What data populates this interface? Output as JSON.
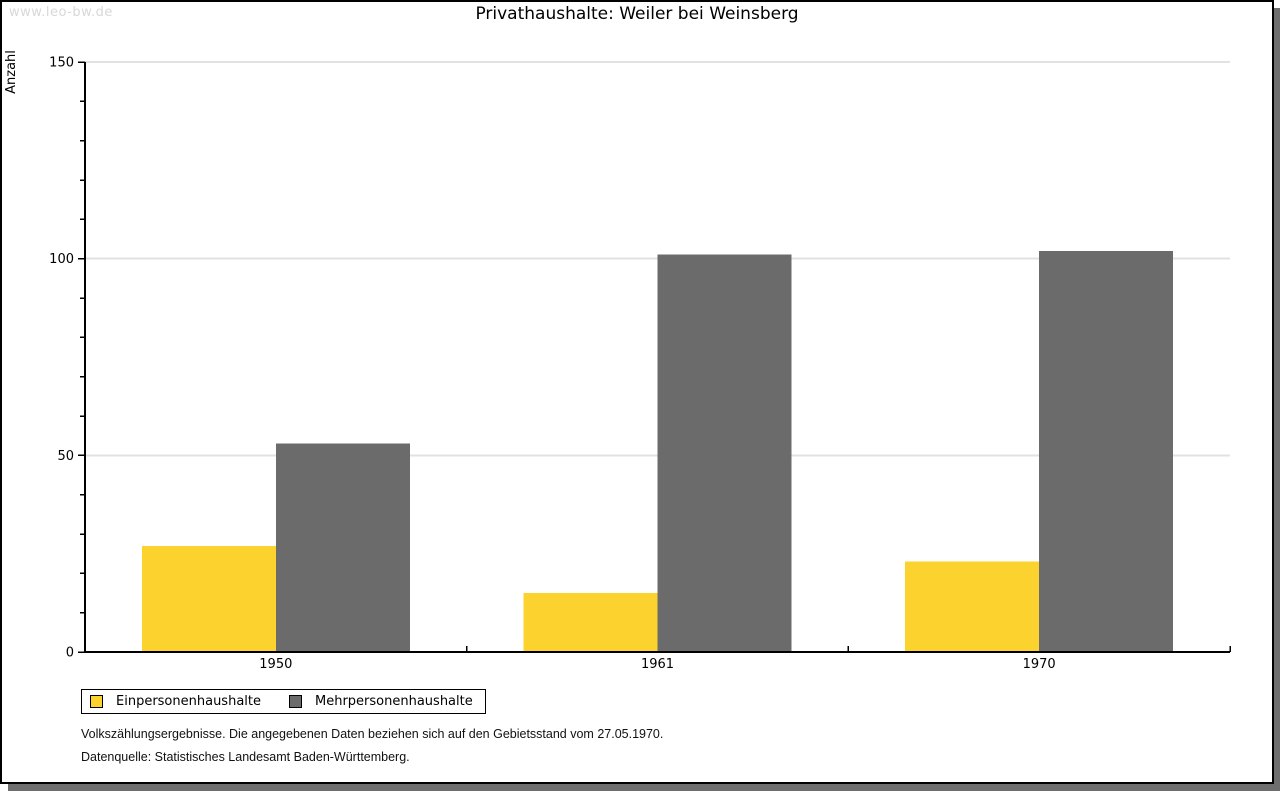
{
  "watermark": "www.leo-bw.de",
  "title": "Privathaushalte: Weiler bei Weinsberg",
  "footer": {
    "line1": "Volkszählungsergebnisse. Die angegebenen Daten beziehen sich auf den Gebietsstand vom 27.05.1970.",
    "line2": "Datenquelle: Statistisches Landesamt Baden-Württemberg."
  },
  "chart_data": {
    "type": "bar",
    "title": "Privathaushalte: Weiler bei Weinsberg",
    "xlabel": "",
    "ylabel": "Anzahl",
    "categories": [
      "1950",
      "1961",
      "1970"
    ],
    "series": [
      {
        "name": "Einpersonenhaushalte",
        "color": "#FCD32E",
        "values": [
          27,
          15,
          23
        ]
      },
      {
        "name": "Mehrpersonenhaushalte",
        "color": "#6B6B6B",
        "values": [
          53,
          101,
          102
        ]
      }
    ],
    "ylim": [
      0,
      150
    ],
    "y_major_step": 50,
    "y_minor_step": 10,
    "grid": "horizontal-major",
    "legend_position": "bottom-left"
  },
  "colors": {
    "grid": "#E2E2E2",
    "axis": "#000000",
    "tick_label": "#000000",
    "watermark": "#D8D8D8",
    "frame_shadow": "#6E6E6E"
  }
}
